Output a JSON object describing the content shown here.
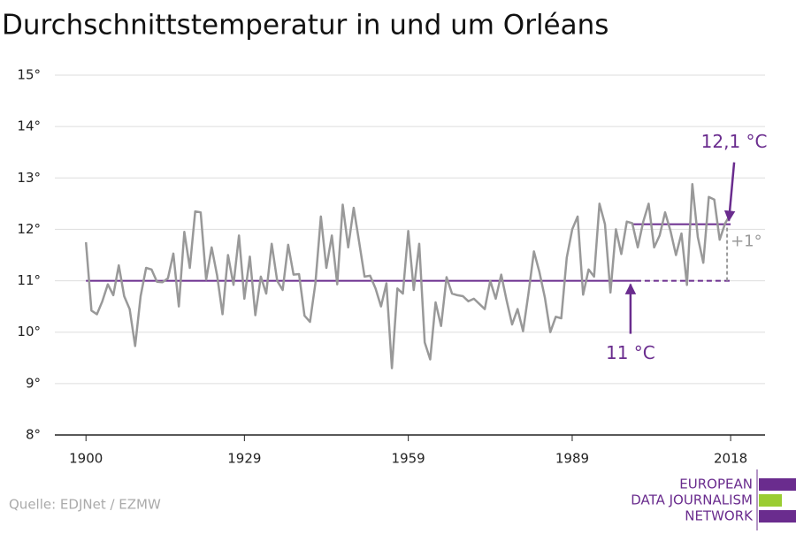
{
  "chart_data": {
    "type": "line",
    "title": "Durchschnittstemperatur in und um Orléans",
    "source": "Quelle: EDJNet / EZMW",
    "logo": [
      "EUROPEAN",
      "DATA JOURNALISM",
      "NETWORK"
    ],
    "x": [
      1900,
      1901,
      1902,
      1903,
      1904,
      1905,
      1906,
      1907,
      1908,
      1909,
      1910,
      1911,
      1912,
      1913,
      1914,
      1915,
      1916,
      1917,
      1918,
      1919,
      1920,
      1921,
      1922,
      1923,
      1924,
      1925,
      1926,
      1927,
      1928,
      1929,
      1930,
      1931,
      1932,
      1933,
      1934,
      1935,
      1936,
      1937,
      1938,
      1939,
      1940,
      1941,
      1942,
      1943,
      1944,
      1945,
      1946,
      1947,
      1948,
      1949,
      1950,
      1951,
      1952,
      1953,
      1954,
      1955,
      1956,
      1957,
      1958,
      1959,
      1960,
      1961,
      1962,
      1963,
      1964,
      1965,
      1966,
      1967,
      1968,
      1969,
      1970,
      1971,
      1972,
      1973,
      1974,
      1975,
      1976,
      1977,
      1978,
      1979,
      1980,
      1981,
      1982,
      1983,
      1984,
      1985,
      1986,
      1987,
      1988,
      1989,
      1990,
      1991,
      1992,
      1993,
      1994,
      1995,
      1996,
      1997,
      1998,
      1999,
      2000,
      2001,
      2002,
      2003,
      2004,
      2005,
      2006,
      2007,
      2008,
      2009,
      2010,
      2011,
      2012,
      2013,
      2014,
      2015,
      2016,
      2017,
      2018
    ],
    "series": [
      {
        "color": "#999999",
        "values": [
          11.75,
          10.42,
          10.35,
          10.6,
          10.93,
          10.72,
          11.3,
          10.7,
          10.45,
          9.73,
          10.7,
          11.25,
          11.22,
          10.98,
          10.97,
          11.05,
          11.53,
          10.5,
          11.95,
          11.25,
          12.35,
          12.33,
          11.02,
          11.65,
          11.1,
          10.35,
          11.5,
          10.92,
          11.88,
          10.65,
          11.47,
          10.33,
          11.08,
          10.75,
          11.72,
          11.0,
          10.82,
          11.7,
          11.12,
          11.13,
          10.32,
          10.2,
          10.95,
          12.25,
          11.25,
          11.88,
          10.93,
          12.48,
          11.65,
          12.42,
          11.75,
          11.08,
          11.1,
          10.85,
          10.5,
          10.95,
          9.3,
          10.85,
          10.75,
          11.97,
          10.82,
          11.72,
          9.8,
          9.47,
          10.58,
          10.12,
          11.07,
          10.75,
          10.72,
          10.7,
          10.6,
          10.65,
          10.55,
          10.45,
          11.0,
          10.65,
          11.12,
          10.62,
          10.15,
          10.45,
          10.02,
          10.75,
          11.57,
          11.17,
          10.67,
          10.0,
          10.3,
          10.27,
          11.45,
          12.0,
          12.25,
          10.73,
          11.22,
          11.08,
          12.5,
          12.1,
          10.77,
          12.0,
          11.52,
          12.15,
          12.12,
          11.65,
          12.15,
          12.5,
          11.65,
          11.88,
          12.33,
          11.97,
          11.5,
          11.92,
          10.92,
          12.88,
          11.85,
          11.35,
          12.63,
          12.58,
          11.8,
          12.12,
          12.3
        ]
      }
    ],
    "reference_lines": [
      {
        "value": 11,
        "label": "11 °C",
        "x": [
          1900,
          2018
        ],
        "color": "#6a2c8e"
      },
      {
        "value": 12.1,
        "label": "12,1 °C",
        "x": [
          2000,
          2018
        ],
        "color": "#6a2c8e"
      }
    ],
    "difference_label": "+1°",
    "xlim": [
      1894.3,
      2024.3
    ],
    "xticks": [
      1900,
      1929,
      1959,
      1989,
      2018
    ],
    "ylim": [
      8,
      15
    ],
    "yticks": [
      {
        "value": 8,
        "label": "8°"
      },
      {
        "value": 9,
        "label": "9°"
      },
      {
        "value": 10,
        "label": "10°"
      },
      {
        "value": 11,
        "label": "11°"
      },
      {
        "value": 12,
        "label": "12°"
      },
      {
        "value": 13,
        "label": "13°"
      },
      {
        "value": 14,
        "label": "14°"
      },
      {
        "value": 15,
        "label": "15°"
      }
    ],
    "grid": true
  }
}
